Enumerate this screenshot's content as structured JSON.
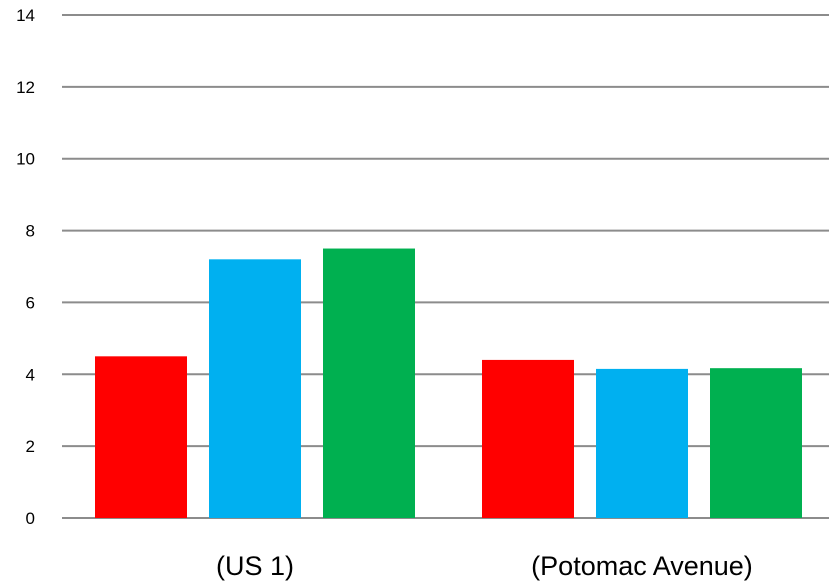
{
  "chart_data": {
    "type": "bar",
    "categories": [
      "(US 1)",
      "(Potomac Avenue)"
    ],
    "series": [
      {
        "values": [
          4.5,
          4.4
        ],
        "color": "#ff0000"
      },
      {
        "values": [
          7.2,
          4.15
        ],
        "color": "#00b0f0"
      },
      {
        "values": [
          7.5,
          4.17
        ],
        "color": "#00b050"
      }
    ],
    "ylim": [
      0,
      14
    ],
    "yticks": [
      0,
      2,
      4,
      6,
      8,
      10,
      12,
      14
    ],
    "grid": true,
    "legend": "none"
  }
}
